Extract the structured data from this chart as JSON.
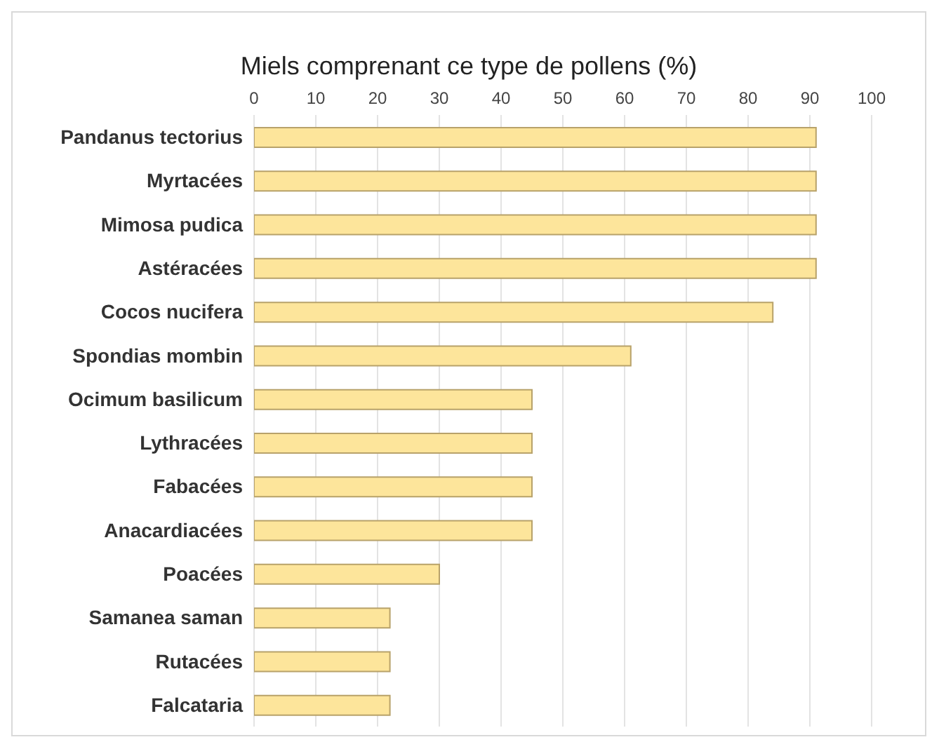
{
  "chart_data": {
    "type": "bar",
    "orientation": "horizontal",
    "title": "Miels comprenant ce type de pollens (%)",
    "categories": [
      "Pandanus tectorius",
      "Myrtacées",
      "Mimosa pudica",
      "Astéracées",
      "Cocos nucifera",
      "Spondias mombin",
      "Ocimum basilicum",
      "Lythracées",
      "Fabacées",
      "Anacardiacées",
      "Poacées",
      "Samanea saman",
      "Rutacées",
      "Falcataria"
    ],
    "values": [
      91,
      91,
      91,
      91,
      84,
      61,
      45,
      45,
      45,
      45,
      30,
      22,
      22,
      22
    ],
    "color": "#fde59b",
    "xlim": [
      0,
      100
    ],
    "xticks": [
      0,
      10,
      20,
      30,
      40,
      50,
      60,
      70,
      80,
      90,
      100
    ],
    "grid": "x"
  }
}
